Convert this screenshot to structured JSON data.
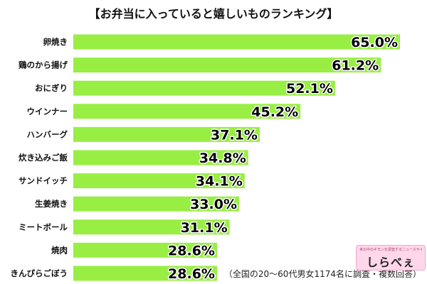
{
  "chart_data": {
    "type": "bar",
    "orientation": "horizontal",
    "title": "【お弁当に入っていると嬉しいものランキング】",
    "categories": [
      "卵焼き",
      "鶏のから揚げ",
      "おにぎり",
      "ウインナー",
      "ハンバーグ",
      "炊き込みご飯",
      "サンドイッチ",
      "生姜焼き",
      "ミートボール",
      "焼肉",
      "きんぴらごぼう"
    ],
    "values": [
      65.0,
      61.2,
      52.1,
      45.2,
      37.1,
      34.8,
      34.1,
      33.0,
      31.1,
      28.6,
      28.6
    ],
    "value_labels": [
      "65.0%",
      "61.2%",
      "52.1%",
      "45.2%",
      "37.1%",
      "34.8%",
      "34.1%",
      "33.0%",
      "31.1%",
      "28.6%",
      "28.6%"
    ],
    "xlim": [
      0,
      65.0
    ],
    "grid": false,
    "legend": "none",
    "bar_color": "#99ee44",
    "footnote": "（全国の20～60代男女1174名に調査・複数回答）"
  },
  "logo": {
    "text": "しらべぇ",
    "tagline": "世の中のギモンを調査するニュースサイト"
  }
}
